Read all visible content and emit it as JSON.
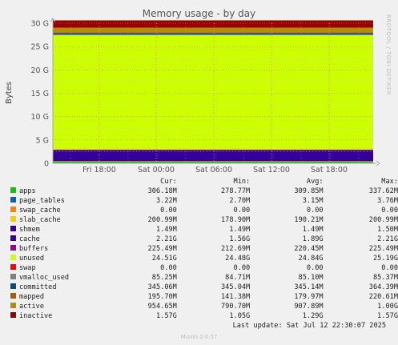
{
  "chart_data": {
    "type": "area",
    "stacked": true,
    "title": "Memory usage - by day",
    "ylabel": "Bytes",
    "side_text": "RRDTOOL / TOBI OETIKER",
    "ylim": [
      0,
      30
    ],
    "y_unit": "G",
    "y_ticks": [
      "0",
      "5 G",
      "10 G",
      "15 G",
      "20 G",
      "25 G",
      "30 G"
    ],
    "x_ticks": [
      "Fri 18:00",
      "Sat 00:00",
      "Sat 06:00",
      "Sat 12:00",
      "Sat 18:00"
    ],
    "grid": true,
    "series": [
      {
        "name": "apps",
        "color": "#00cc00",
        "cur": "306.18M",
        "min": "278.77M",
        "avg": "309.85M",
        "max": "337.62M",
        "value_g": 0.306
      },
      {
        "name": "page_tables",
        "color": "#0066b3",
        "cur": "3.22M",
        "min": "2.70M",
        "avg": "3.15M",
        "max": "3.76M",
        "value_g": 0.003
      },
      {
        "name": "swap_cache",
        "color": "#ff8000",
        "cur": "0.00",
        "min": "0.00",
        "avg": "0.00",
        "max": "0.00",
        "value_g": 0
      },
      {
        "name": "slab_cache",
        "color": "#ffcc00",
        "cur": "200.99M",
        "min": "178.90M",
        "avg": "190.21M",
        "max": "200.99M",
        "value_g": 0.201
      },
      {
        "name": "shmem",
        "color": "#330099",
        "cur": "1.49M",
        "min": "1.49M",
        "avg": "1.49M",
        "max": "1.50M",
        "value_g": 0.0015
      },
      {
        "name": "cache",
        "color": "#330099",
        "cur": "2.21G",
        "min": "1.56G",
        "avg": "1.89G",
        "max": "2.21G",
        "value_g": 2.21
      },
      {
        "name": "buffers",
        "color": "#990099",
        "cur": "225.49M",
        "min": "212.69M",
        "avg": "220.45M",
        "max": "225.49M",
        "value_g": 0.225
      },
      {
        "name": "unused",
        "color": "#ccff00",
        "cur": "24.51G",
        "min": "24.48G",
        "avg": "24.84G",
        "max": "25.19G",
        "value_g": 24.51
      },
      {
        "name": "swap",
        "color": "#ff0000",
        "cur": "0.00",
        "min": "0.00",
        "avg": "0.00",
        "max": "0.00",
        "value_g": 0
      },
      {
        "name": "vmalloc_used",
        "color": "#808080",
        "cur": "85.25M",
        "min": "84.71M",
        "avg": "85.10M",
        "max": "85.37M",
        "value_g": 0.085
      },
      {
        "name": "committed",
        "color": "#004d80",
        "cur": "345.06M",
        "min": "345.04M",
        "avg": "345.14M",
        "max": "364.39M",
        "value_g": 0.345
      },
      {
        "name": "mapped",
        "color": "#b35a00",
        "cur": "195.70M",
        "min": "141.38M",
        "avg": "179.97M",
        "max": "220.61M",
        "value_g": 0.196
      },
      {
        "name": "active",
        "color": "#b38f00",
        "cur": "954.65M",
        "min": "790.70M",
        "avg": "907.89M",
        "max": "1.00G",
        "value_g": 0.955
      },
      {
        "name": "inactive",
        "color": "#990000",
        "cur": "1.57G",
        "min": "1.05G",
        "avg": "1.29G",
        "max": "1.57G",
        "value_g": 1.57
      }
    ]
  },
  "legend_header": {
    "cur": "Cur:",
    "min": "Min:",
    "avg": "Avg:",
    "max": "Max:"
  },
  "footer": {
    "last_update": "Last update: Sat Jul 12 22:30:07 2025",
    "version": "Munin 2.0.57"
  }
}
